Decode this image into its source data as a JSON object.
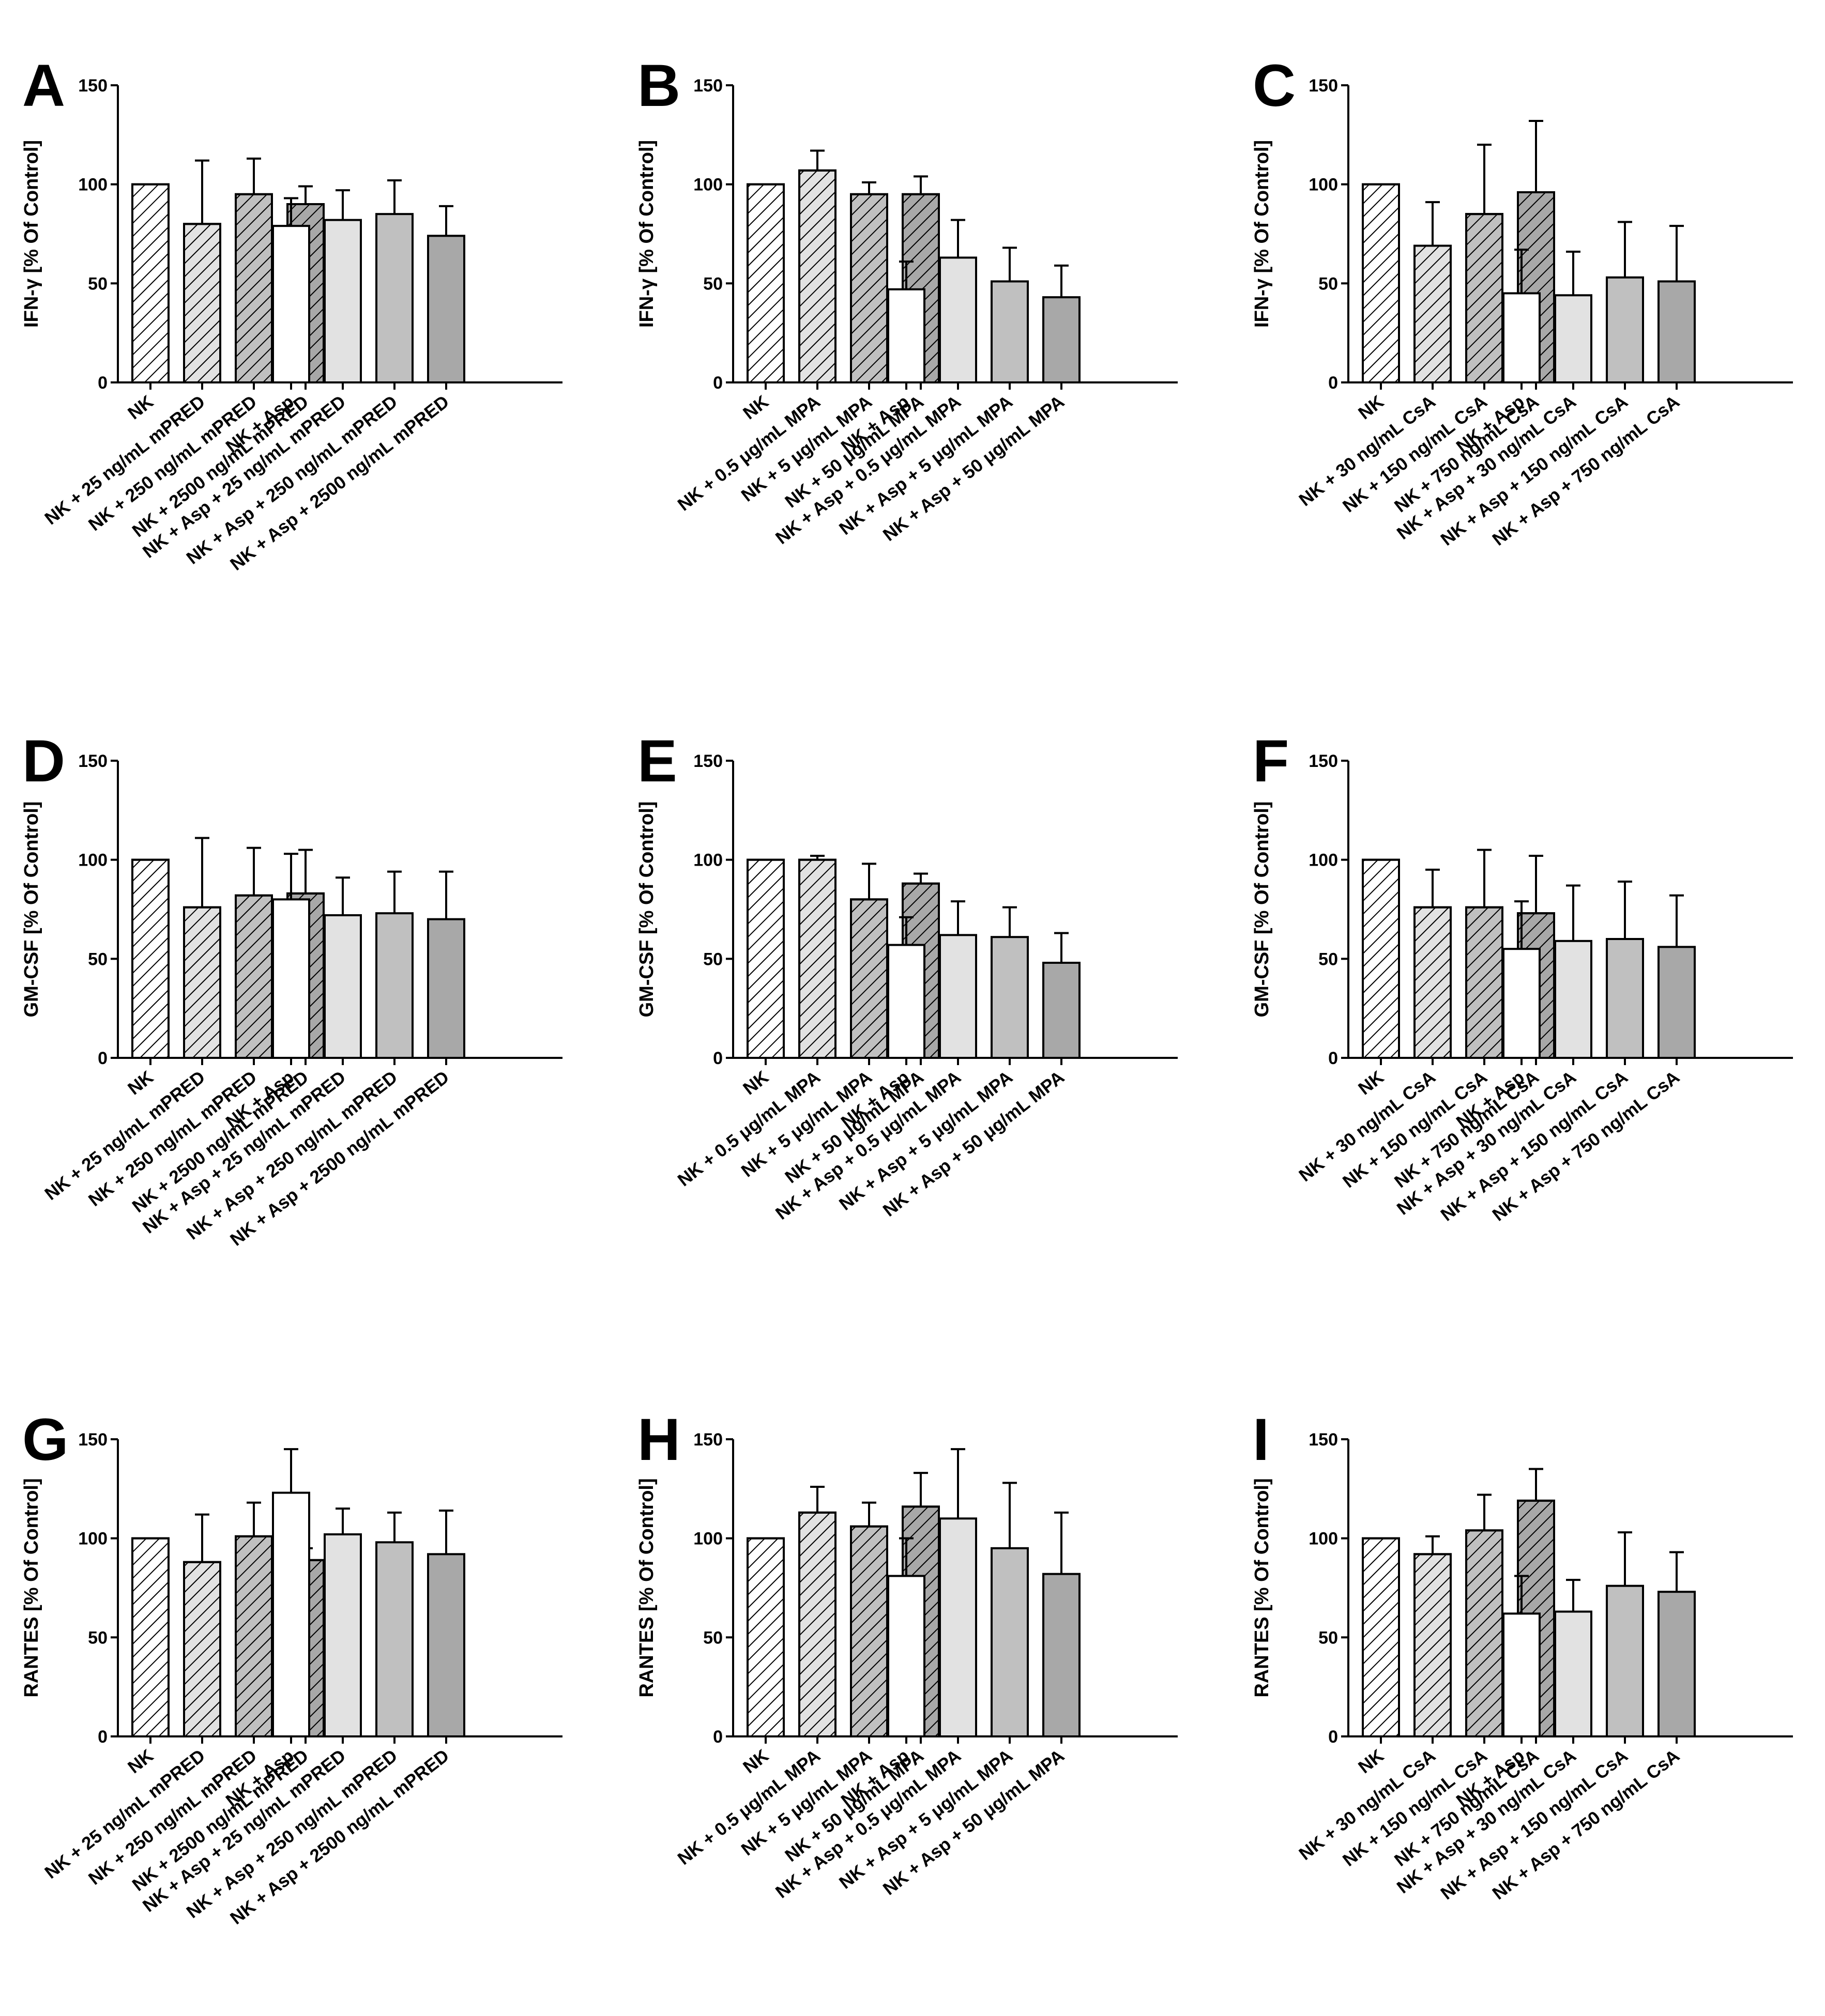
{
  "figure": {
    "fills": {
      "white": "#ffffff",
      "light": "#e2e2e2",
      "medium": "#c0c0c0",
      "dark": "#a8a8a8"
    }
  },
  "chart_data": [
    {
      "panel": "A",
      "type": "bar",
      "ylabel": "IFN-γ [% Of Control]",
      "ylim": [
        0,
        150
      ],
      "yticks": [
        0,
        50,
        100,
        150
      ],
      "categories": [
        "NK",
        "NK + 25 ng/mL mPRED",
        "NK + 250 ng/mL mPRED",
        "NK + 2500 ng/mL mPRED",
        "NK + Asp",
        "NK + Asp + 25 ng/mL mPRED",
        "NK + Asp + 250 ng/mL mPRED",
        "NK + Asp + 2500 ng/mL mPRED"
      ],
      "values": [
        100,
        80,
        95,
        90,
        79,
        82,
        85,
        74
      ],
      "errors": [
        0,
        32,
        18,
        9,
        14,
        15,
        17,
        15
      ]
    },
    {
      "panel": "B",
      "type": "bar",
      "ylabel": "IFN-γ [% Of Control]",
      "ylim": [
        0,
        150
      ],
      "yticks": [
        0,
        50,
        100,
        150
      ],
      "categories": [
        "NK",
        "NK + 0.5 μg/mL MPA",
        "NK + 5 μg/mL MPA",
        "NK + 50 μg/mL MPA",
        "NK + Asp",
        "NK + Asp + 0.5 μg/mL MPA",
        "NK + Asp + 5 μg/mL MPA",
        "NK + Asp + 50 μg/mL MPA"
      ],
      "values": [
        100,
        107,
        95,
        95,
        47,
        63,
        51,
        43
      ],
      "errors": [
        0,
        10,
        6,
        9,
        14,
        19,
        17,
        16
      ]
    },
    {
      "panel": "C",
      "type": "bar",
      "ylabel": "IFN-γ [% Of Control]",
      "ylim": [
        0,
        150
      ],
      "yticks": [
        0,
        50,
        100,
        150
      ],
      "categories": [
        "NK",
        "NK + 30 ng/mL CsA",
        "NK + 150 ng/mL CsA",
        "NK + 750 ng/mL CsA",
        "NK + Asp",
        "NK + Asp + 30 ng/mL CsA",
        "NK + Asp + 150 ng/mL CsA",
        "NK + Asp + 750 ng/mL CsA"
      ],
      "values": [
        100,
        69,
        85,
        96,
        45,
        44,
        53,
        51
      ],
      "errors": [
        0,
        22,
        35,
        36,
        22,
        22,
        28,
        28
      ]
    },
    {
      "panel": "D",
      "type": "bar",
      "ylabel": "GM-CSF [% Of Control]",
      "ylim": [
        0,
        150
      ],
      "yticks": [
        0,
        50,
        100,
        150
      ],
      "categories": [
        "NK",
        "NK + 25 ng/mL mPRED",
        "NK + 250 ng/mL mPRED",
        "NK + 2500 ng/mL mPRED",
        "NK + Asp",
        "NK + Asp + 25 ng/mL mPRED",
        "NK + Asp + 250 ng/mL mPRED",
        "NK + Asp + 2500 ng/mL mPRED"
      ],
      "values": [
        100,
        76,
        82,
        83,
        80,
        72,
        73,
        70
      ],
      "errors": [
        0,
        35,
        24,
        22,
        23,
        19,
        21,
        24
      ]
    },
    {
      "panel": "E",
      "type": "bar",
      "ylabel": "GM-CSF [% Of Control]",
      "ylim": [
        0,
        150
      ],
      "yticks": [
        0,
        50,
        100,
        150
      ],
      "categories": [
        "NK",
        "NK + 0.5 μg/mL MPA",
        "NK + 5 μg/mL MPA",
        "NK + 50 μg/mL MPA",
        "NK + Asp",
        "NK + Asp + 0.5 μg/mL MPA",
        "NK + Asp + 5 μg/mL MPA",
        "NK + Asp + 50 μg/mL MPA"
      ],
      "values": [
        100,
        100,
        80,
        88,
        57,
        62,
        61,
        48
      ],
      "errors": [
        0,
        2,
        18,
        5,
        14,
        17,
        15,
        15
      ]
    },
    {
      "panel": "F",
      "type": "bar",
      "ylabel": "GM-CSF [% Of Control]",
      "ylim": [
        0,
        150
      ],
      "yticks": [
        0,
        50,
        100,
        150
      ],
      "categories": [
        "NK",
        "NK + 30 ng/mL CsA",
        "NK + 150 ng/mL CsA",
        "NK + 750 ng/mL CsA",
        "NK + Asp",
        "NK + Asp + 30 ng/mL CsA",
        "NK + Asp + 150 ng/mL CsA",
        "NK + Asp + 750 ng/mL CsA"
      ],
      "values": [
        100,
        76,
        76,
        73,
        55,
        59,
        60,
        56
      ],
      "errors": [
        0,
        19,
        29,
        29,
        24,
        28,
        29,
        26
      ]
    },
    {
      "panel": "G",
      "type": "bar",
      "ylabel": "RANTES [% Of Control]",
      "ylim": [
        0,
        150
      ],
      "yticks": [
        0,
        50,
        100,
        150
      ],
      "categories": [
        "NK",
        "NK + 25 ng/mL mPRED",
        "NK + 250 ng/mL mPRED",
        "NK + 2500 ng/mL mPRED",
        "NK + Asp",
        "NK + Asp + 25 ng/mL mPRED",
        "NK + Asp + 250 ng/mL mPRED",
        "NK + Asp + 2500 ng/mL mPRED"
      ],
      "values": [
        100,
        88,
        101,
        89,
        123,
        102,
        98,
        92
      ],
      "errors": [
        0,
        24,
        17,
        6,
        22,
        13,
        15,
        22
      ]
    },
    {
      "panel": "H",
      "type": "bar",
      "ylabel": "RANTES [% Of Control]",
      "ylim": [
        0,
        150
      ],
      "yticks": [
        0,
        50,
        100,
        150
      ],
      "categories": [
        "NK",
        "NK + 0.5 μg/mL MPA",
        "NK + 5 μg/mL MPA",
        "NK + 50 μg/mL MPA",
        "NK + Asp",
        "NK + Asp + 0.5 μg/mL MPA",
        "NK + Asp + 5 μg/mL MPA",
        "NK + Asp + 50 μg/mL MPA"
      ],
      "values": [
        100,
        113,
        106,
        116,
        81,
        110,
        95,
        82
      ],
      "errors": [
        0,
        13,
        12,
        17,
        19,
        35,
        33,
        31
      ]
    },
    {
      "panel": "I",
      "type": "bar",
      "ylabel": "RANTES [% Of Control]",
      "ylim": [
        0,
        150
      ],
      "yticks": [
        0,
        50,
        100,
        150
      ],
      "categories": [
        "NK",
        "NK + 30 ng/mL CsA",
        "NK + 150 ng/mL CsA",
        "NK + 750 ng/mL CsA",
        "NK + Asp",
        "NK + Asp + 30 ng/mL CsA",
        "NK + Asp + 150 ng/mL CsA",
        "NK + Asp + 750 ng/mL CsA"
      ],
      "values": [
        100,
        92,
        104,
        119,
        62,
        63,
        76,
        73
      ],
      "errors": [
        0,
        9,
        18,
        16,
        19,
        16,
        27,
        20
      ]
    }
  ]
}
